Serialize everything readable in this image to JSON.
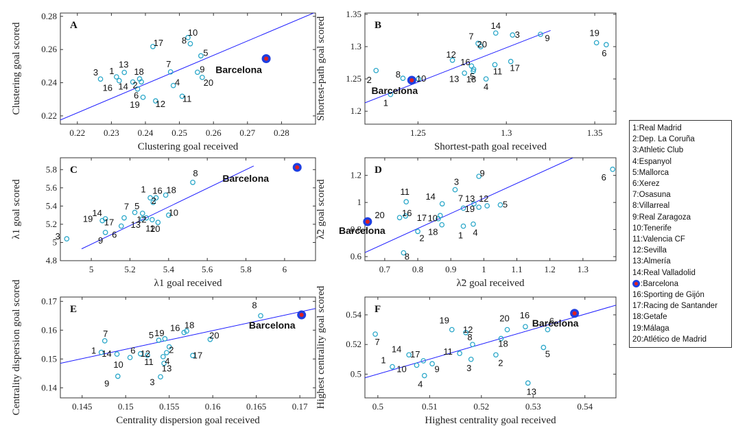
{
  "colors": {
    "point": "#2aa7c9",
    "line": "#1a1aff",
    "highlight_outer": "#1f3fe0",
    "highlight_inner": "#e02020"
  },
  "legend": {
    "placement": "right",
    "items": [
      {
        "label": "1:Real Madrid",
        "marker": false
      },
      {
        "label": "2:Dep. La Coruña",
        "marker": false
      },
      {
        "label": "3:Athletic Club",
        "marker": false
      },
      {
        "label": "4:Espanyol",
        "marker": false
      },
      {
        "label": "5:Mallorca",
        "marker": false
      },
      {
        "label": "6:Xerez",
        "marker": false
      },
      {
        "label": "7:Osasuna",
        "marker": false
      },
      {
        "label": "8:Villarreal",
        "marker": false
      },
      {
        "label": "9:Real Zaragoza",
        "marker": false
      },
      {
        "label": "10:Tenerife",
        "marker": false
      },
      {
        "label": "11:Valencia CF",
        "marker": false
      },
      {
        "label": "12:Sevilla",
        "marker": false
      },
      {
        "label": "13:Almería",
        "marker": false
      },
      {
        "label": "14:Real Valladolid",
        "marker": false
      },
      {
        "label": ":Barcelona",
        "marker": true
      },
      {
        "label": "16:Sporting de Gijón",
        "marker": false
      },
      {
        "label": "17:Racing de Santander",
        "marker": false
      },
      {
        "label": "18:Getafe",
        "marker": false
      },
      {
        "label": "19:Málaga",
        "marker": false
      },
      {
        "label": "20:Atlético de Madrid",
        "marker": false
      }
    ]
  },
  "chart_data": [
    {
      "type": "scatter",
      "panel": "A",
      "xlabel": "Clustering goal received",
      "ylabel": "Clustering goal scored",
      "xlim": [
        0.215,
        0.29
      ],
      "ylim": [
        0.215,
        0.282
      ],
      "xticks": [
        0.22,
        0.23,
        0.24,
        0.25,
        0.26,
        0.27,
        0.28
      ],
      "yticks": [
        0.22,
        0.24,
        0.26,
        0.28
      ],
      "xtick_labels": [
        "0.22",
        "0.23",
        "0.24",
        "0.25",
        "0.26",
        "0.27",
        "0.28"
      ],
      "ytick_labels": [
        "0.22",
        "0.24",
        "0.26",
        "0.28"
      ],
      "fit_line": [
        [
          0.215,
          0.2175
        ],
        [
          0.29,
          0.2825
        ]
      ],
      "points": [
        {
          "label": "1",
          "x": 0.2315,
          "y": 0.2435
        },
        {
          "label": "2",
          "x": 0.2388,
          "y": 0.2405
        },
        {
          "label": "3",
          "x": 0.2268,
          "y": 0.2422
        },
        {
          "label": "4",
          "x": 0.2482,
          "y": 0.2383
        },
        {
          "label": "5",
          "x": 0.2563,
          "y": 0.2562
        },
        {
          "label": "6",
          "x": 0.2377,
          "y": 0.2362
        },
        {
          "label": "7",
          "x": 0.2474,
          "y": 0.2465
        },
        {
          "label": "8",
          "x": 0.2532,
          "y": 0.2635
        },
        {
          "label": "9",
          "x": 0.2553,
          "y": 0.2463
        },
        {
          "label": "10",
          "x": 0.2525,
          "y": 0.2672
        },
        {
          "label": "11",
          "x": 0.2508,
          "y": 0.2318
        },
        {
          "label": "12",
          "x": 0.243,
          "y": 0.229
        },
        {
          "label": "13",
          "x": 0.2338,
          "y": 0.2462
        },
        {
          "label": "14",
          "x": 0.2363,
          "y": 0.2404
        },
        {
          "label": "16",
          "x": 0.2323,
          "y": 0.2412
        },
        {
          "label": "17",
          "x": 0.2422,
          "y": 0.2618
        },
        {
          "label": "18",
          "x": 0.2383,
          "y": 0.2423
        },
        {
          "label": "19",
          "x": 0.2393,
          "y": 0.2312
        },
        {
          "label": "20",
          "x": 0.2567,
          "y": 0.2432
        }
      ],
      "highlight": {
        "label": "Barcelona",
        "x": 0.2755,
        "y": 0.2545
      }
    },
    {
      "type": "scatter",
      "panel": "B",
      "xlabel": "Shortest-path goal received",
      "ylabel": "Shortest-path goal scored",
      "xlim": [
        1.22,
        1.362
      ],
      "ylim": [
        1.18,
        1.352
      ],
      "xticks": [
        1.25,
        1.3,
        1.35
      ],
      "yticks": [
        1.2,
        1.25,
        1.3,
        1.35
      ],
      "xtick_labels": [
        "1.25",
        "1.3",
        "1.35"
      ],
      "ytick_labels": [
        "1.2",
        "1.25",
        "1.3",
        "1.35"
      ],
      "fit_line": [
        [
          1.22,
          1.213
        ],
        [
          1.325,
          1.325
        ]
      ],
      "points": [
        {
          "label": "1",
          "x": 1.2345,
          "y": 1.226
        },
        {
          "label": "2",
          "x": 1.2263,
          "y": 1.263
        },
        {
          "label": "3",
          "x": 1.3035,
          "y": 1.318
        },
        {
          "label": "4",
          "x": 1.2885,
          "y": 1.25
        },
        {
          "label": "5",
          "x": 1.2815,
          "y": 1.265
        },
        {
          "label": "6",
          "x": 1.3565,
          "y": 1.303
        },
        {
          "label": "7",
          "x": 1.284,
          "y": 1.305
        },
        {
          "label": "8",
          "x": 1.2415,
          "y": 1.251
        },
        {
          "label": "9",
          "x": 1.3193,
          "y": 1.319
        },
        {
          "label": "10",
          "x": 1.2503,
          "y": 1.25
        },
        {
          "label": "11",
          "x": 1.2935,
          "y": 1.272
        },
        {
          "label": "12",
          "x": 1.2695,
          "y": 1.279
        },
        {
          "label": "13",
          "x": 1.2763,
          "y": 1.259
        },
        {
          "label": "14",
          "x": 1.294,
          "y": 1.321
        },
        {
          "label": "16",
          "x": 1.2803,
          "y": 1.27
        },
        {
          "label": "17",
          "x": 1.3025,
          "y": 1.277
        },
        {
          "label": "18",
          "x": 1.2813,
          "y": 1.262
        },
        {
          "label": "19",
          "x": 1.351,
          "y": 1.306
        },
        {
          "label": "20",
          "x": 1.2855,
          "y": 1.3
        }
      ],
      "highlight": {
        "label": "Barcelona",
        "x": 1.2465,
        "y": 1.248
      }
    },
    {
      "type": "scatter",
      "panel": "C",
      "xlabel": "λ1 goal received",
      "ylabel": "λ1 goal scored",
      "xlim": [
        4.84,
        6.16
      ],
      "ylim": [
        4.8,
        5.93
      ],
      "xticks": [
        5,
        5.2,
        5.4,
        5.6,
        5.8,
        6
      ],
      "yticks": [
        4.8,
        5,
        5.2,
        5.4,
        5.6,
        5.8
      ],
      "xtick_labels": [
        "5",
        "5.2",
        "5.4",
        "5.6",
        "5.8",
        "6"
      ],
      "ytick_labels": [
        "4.8",
        "5",
        "5.2",
        "5.4",
        "5.6",
        "5.8"
      ],
      "fit_line": [
        [
          4.95,
          4.93
        ],
        [
          5.84,
          5.84
        ]
      ],
      "points": [
        {
          "label": "1",
          "x": 5.305,
          "y": 5.49
        },
        {
          "label": "2",
          "x": 5.32,
          "y": 5.44
        },
        {
          "label": "3",
          "x": 4.873,
          "y": 5.04
        },
        {
          "label": "5",
          "x": 5.265,
          "y": 5.32
        },
        {
          "label": "6",
          "x": 5.155,
          "y": 5.18
        },
        {
          "label": "7",
          "x": 5.225,
          "y": 5.33
        },
        {
          "label": "8",
          "x": 5.525,
          "y": 5.66
        },
        {
          "label": "9",
          "x": 5.073,
          "y": 5.11
        },
        {
          "label": "10",
          "x": 5.4,
          "y": 5.3
        },
        {
          "label": "11",
          "x": 5.315,
          "y": 5.25
        },
        {
          "label": "12",
          "x": 5.285,
          "y": 5.27
        },
        {
          "label": "13",
          "x": 5.265,
          "y": 5.26
        },
        {
          "label": "14",
          "x": 5.073,
          "y": 5.26
        },
        {
          "label": "16",
          "x": 5.335,
          "y": 5.49
        },
        {
          "label": "17",
          "x": 5.17,
          "y": 5.27
        },
        {
          "label": "18",
          "x": 5.385,
          "y": 5.52
        },
        {
          "label": "19",
          "x": 5.057,
          "y": 5.24
        },
        {
          "label": "20",
          "x": 5.345,
          "y": 5.22
        }
      ],
      "highlight": {
        "label": "Barcelona",
        "x": 6.065,
        "y": 5.825
      }
    },
    {
      "type": "scatter",
      "panel": "D",
      "xlabel": "λ̃2 goal received",
      "ylabel": "λ̃2 goal scored",
      "xlim": [
        0.64,
        1.4
      ],
      "ylim": [
        0.57,
        1.33
      ],
      "xticks": [
        0.7,
        0.8,
        0.9,
        1,
        1.1,
        1.2,
        1.3
      ],
      "yticks": [
        0.6,
        0.8,
        1,
        1.2
      ],
      "xtick_labels": [
        "0.7",
        "0.8",
        "0.9",
        "1",
        "1.1",
        "1.2",
        "1.3"
      ],
      "ytick_labels": [
        "0.6",
        "0.8",
        "1",
        "1.2"
      ],
      "fit_line": [
        [
          0.64,
          0.63
        ],
        [
          1.27,
          1.33
        ]
      ],
      "points": [
        {
          "label": "1",
          "x": 0.938,
          "y": 0.825
        },
        {
          "label": "2",
          "x": 0.8,
          "y": 0.786
        },
        {
          "label": "3",
          "x": 0.913,
          "y": 1.094
        },
        {
          "label": "4",
          "x": 0.968,
          "y": 0.84
        },
        {
          "label": "5",
          "x": 1.05,
          "y": 0.982
        },
        {
          "label": "6",
          "x": 1.39,
          "y": 1.245
        },
        {
          "label": "7",
          "x": 0.938,
          "y": 0.958
        },
        {
          "label": "8",
          "x": 0.757,
          "y": 0.628
        },
        {
          "label": "9",
          "x": 0.985,
          "y": 1.193
        },
        {
          "label": "10",
          "x": 0.868,
          "y": 0.903
        },
        {
          "label": "11",
          "x": 0.765,
          "y": 1.005
        },
        {
          "label": "12",
          "x": 1.01,
          "y": 0.975
        },
        {
          "label": "13",
          "x": 0.985,
          "y": 0.965
        },
        {
          "label": "14",
          "x": 0.874,
          "y": 0.99
        },
        {
          "label": "16",
          "x": 0.763,
          "y": 0.9
        },
        {
          "label": "17",
          "x": 0.862,
          "y": 0.88
        },
        {
          "label": "18",
          "x": 0.873,
          "y": 0.835
        },
        {
          "label": "19",
          "x": 0.97,
          "y": 0.99
        },
        {
          "label": "20",
          "x": 0.745,
          "y": 0.888
        }
      ],
      "highlight": {
        "label": "Barcelona",
        "x": 0.648,
        "y": 0.858
      }
    },
    {
      "type": "scatter",
      "panel": "E",
      "xlabel": "Centrality dispersion goal received",
      "ylabel": "Centrality dispersion goal scored",
      "xlim": [
        0.1425,
        0.1718
      ],
      "ylim": [
        0.1365,
        0.1715
      ],
      "xticks": [
        0.145,
        0.15,
        0.155,
        0.16,
        0.165,
        0.17
      ],
      "yticks": [
        0.14,
        0.15,
        0.16,
        0.17
      ],
      "xtick_labels": [
        "0.145",
        "0.15",
        "0.155",
        "0.16",
        "0.165",
        "0.17"
      ],
      "ytick_labels": [
        "0.14",
        "0.15",
        "0.16",
        "0.17"
      ],
      "fit_line": [
        [
          0.1425,
          0.1485
        ],
        [
          0.1718,
          0.1675
        ]
      ],
      "points": [
        {
          "label": "1",
          "x": 0.1472,
          "y": 0.1523
        },
        {
          "label": "2",
          "x": 0.155,
          "y": 0.1542
        },
        {
          "label": "3",
          "x": 0.154,
          "y": 0.1438
        },
        {
          "label": "4",
          "x": 0.1543,
          "y": 0.1508
        },
        {
          "label": "5",
          "x": 0.1538,
          "y": 0.1565
        },
        {
          "label": "6",
          "x": 0.1517,
          "y": 0.1518
        },
        {
          "label": "7",
          "x": 0.1476,
          "y": 0.1563
        },
        {
          "label": "8",
          "x": 0.1655,
          "y": 0.165
        },
        {
          "label": "9",
          "x": 0.1491,
          "y": 0.144
        },
        {
          "label": "10",
          "x": 0.1505,
          "y": 0.1505
        },
        {
          "label": "11",
          "x": 0.1525,
          "y": 0.1513
        },
        {
          "label": "12",
          "x": 0.1547,
          "y": 0.1522
        },
        {
          "label": "13",
          "x": 0.1544,
          "y": 0.1485
        },
        {
          "label": "14",
          "x": 0.149,
          "y": 0.1517
        },
        {
          "label": "16",
          "x": 0.1567,
          "y": 0.1592
        },
        {
          "label": "17",
          "x": 0.1577,
          "y": 0.1512
        },
        {
          "label": "18",
          "x": 0.157,
          "y": 0.1597
        },
        {
          "label": "19",
          "x": 0.1545,
          "y": 0.157
        },
        {
          "label": "20",
          "x": 0.1597,
          "y": 0.1568
        }
      ],
      "highlight": {
        "label": "Barcelona",
        "x": 0.1702,
        "y": 0.1653
      }
    },
    {
      "type": "scatter",
      "panel": "F",
      "xlabel": "Highest centrality goal received",
      "ylabel": "Highest centrality goal scored",
      "xlim": [
        0.4975,
        0.546
      ],
      "ylim": [
        0.484,
        0.552
      ],
      "xticks": [
        0.5,
        0.51,
        0.52,
        0.53,
        0.54
      ],
      "yticks": [
        0.5,
        0.52,
        0.54
      ],
      "xtick_labels": [
        "0.5",
        "0.51",
        "0.52",
        "0.53",
        "0.54"
      ],
      "ytick_labels": [
        "0.5",
        "0.52",
        "0.54"
      ],
      "fit_line": [
        [
          0.4975,
          0.4975
        ],
        [
          0.546,
          0.5465
        ]
      ],
      "points": [
        {
          "label": "1",
          "x": 0.5028,
          "y": 0.505
        },
        {
          "label": "2",
          "x": 0.5228,
          "y": 0.513
        },
        {
          "label": "3",
          "x": 0.518,
          "y": 0.51
        },
        {
          "label": "4",
          "x": 0.509,
          "y": 0.499
        },
        {
          "label": "5",
          "x": 0.532,
          "y": 0.518
        },
        {
          "label": "6",
          "x": 0.5328,
          "y": 0.53
        },
        {
          "label": "7",
          "x": 0.4995,
          "y": 0.527
        },
        {
          "label": "8",
          "x": 0.5183,
          "y": 0.52
        },
        {
          "label": "9",
          "x": 0.5105,
          "y": 0.507
        },
        {
          "label": "10",
          "x": 0.5075,
          "y": 0.506
        },
        {
          "label": "11",
          "x": 0.5158,
          "y": 0.514
        },
        {
          "label": "12",
          "x": 0.517,
          "y": 0.528
        },
        {
          "label": "13",
          "x": 0.529,
          "y": 0.494
        },
        {
          "label": "14",
          "x": 0.506,
          "y": 0.513
        },
        {
          "label": "16",
          "x": 0.5285,
          "y": 0.532
        },
        {
          "label": "17",
          "x": 0.5088,
          "y": 0.509
        },
        {
          "label": "18",
          "x": 0.5238,
          "y": 0.524
        },
        {
          "label": "19",
          "x": 0.5143,
          "y": 0.53
        },
        {
          "label": "20",
          "x": 0.525,
          "y": 0.53
        }
      ],
      "highlight": {
        "label": "Barcelona",
        "x": 0.538,
        "y": 0.541
      }
    }
  ]
}
